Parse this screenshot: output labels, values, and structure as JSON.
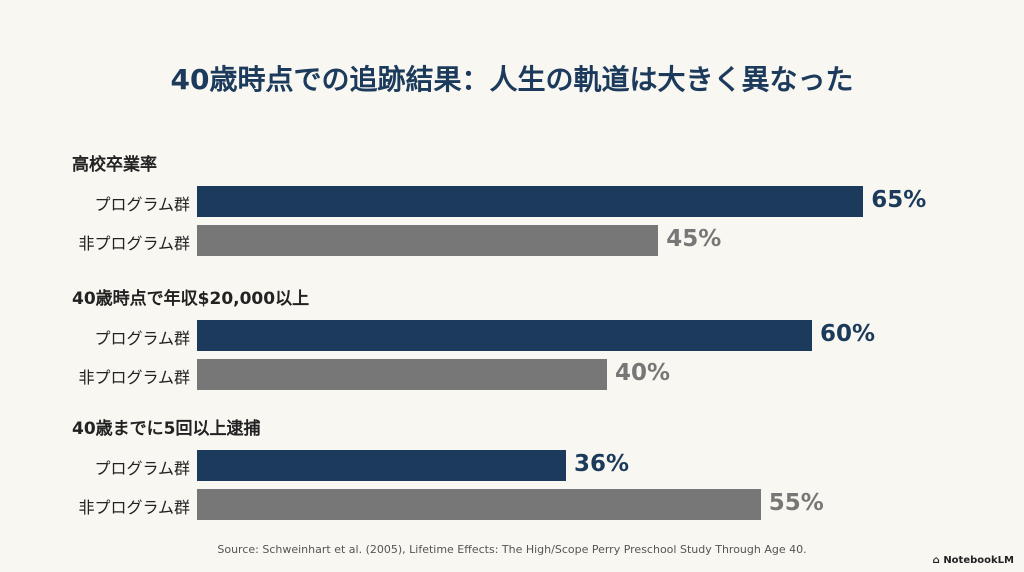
{
  "colors": {
    "program": "#1b3a5c",
    "non_program": "#777777",
    "background": "#f9f7f1"
  },
  "chart_data": {
    "type": "bar",
    "orientation": "horizontal",
    "title": "40歳時点での追跡結果：人生の軌道は大きく異なった",
    "unit": "%",
    "xlim": [
      0,
      100
    ],
    "grid": false,
    "groups": [
      {
        "title": "高校卒業率",
        "bars": [
          {
            "label": "プログラム群",
            "value": 65,
            "display": "65%"
          },
          {
            "label": "非プログラム群",
            "value": 45,
            "display": "45%"
          }
        ]
      },
      {
        "title": "40歳時点で年収$20,000以上",
        "bars": [
          {
            "label": "プログラム群",
            "value": 60,
            "display": "60%"
          },
          {
            "label": "非プログラム群",
            "value": 40,
            "display": "40%"
          }
        ]
      },
      {
        "title": "40歳までに5回以上逮捕",
        "bars": [
          {
            "label": "プログラム群",
            "value": 36,
            "display": "36%"
          },
          {
            "label": "非プログラム群",
            "value": 55,
            "display": "55%"
          }
        ]
      }
    ]
  },
  "footer": {
    "source": "Source: Schweinhart et al. (2005), Lifetime Effects: The High/Scope Perry Preschool Study Through Age 40.",
    "brand": "NotebookLM"
  }
}
